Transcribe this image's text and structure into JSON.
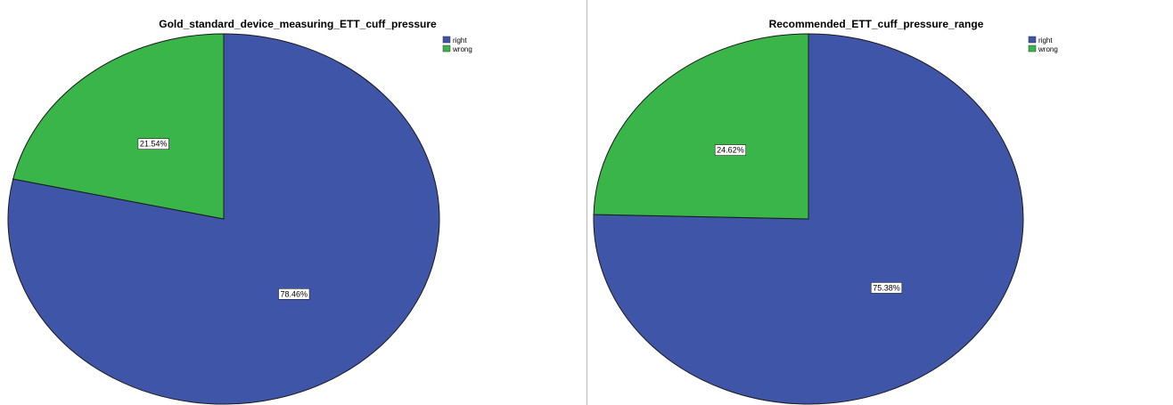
{
  "chart_data": [
    {
      "type": "pie",
      "title": "Gold_standard_device_measuring_ETT_cuff_pressure",
      "categories": [
        "right",
        "wrong"
      ],
      "values": [
        78.46,
        21.54
      ],
      "data_labels": [
        "78.46%",
        "21.54%"
      ],
      "colors": [
        "#3f55a8",
        "#39b54a"
      ],
      "legend_position": "top-right",
      "legend": [
        "right",
        "wrong"
      ]
    },
    {
      "type": "pie",
      "title": "Recommended_ETT_cuff_pressure_range",
      "categories": [
        "right",
        "wrong"
      ],
      "values": [
        75.38,
        24.62
      ],
      "data_labels": [
        "75.38%",
        "24.62%"
      ],
      "colors": [
        "#3f55a8",
        "#39b54a"
      ],
      "legend_position": "top-right",
      "legend": [
        "right",
        "wrong"
      ]
    }
  ]
}
